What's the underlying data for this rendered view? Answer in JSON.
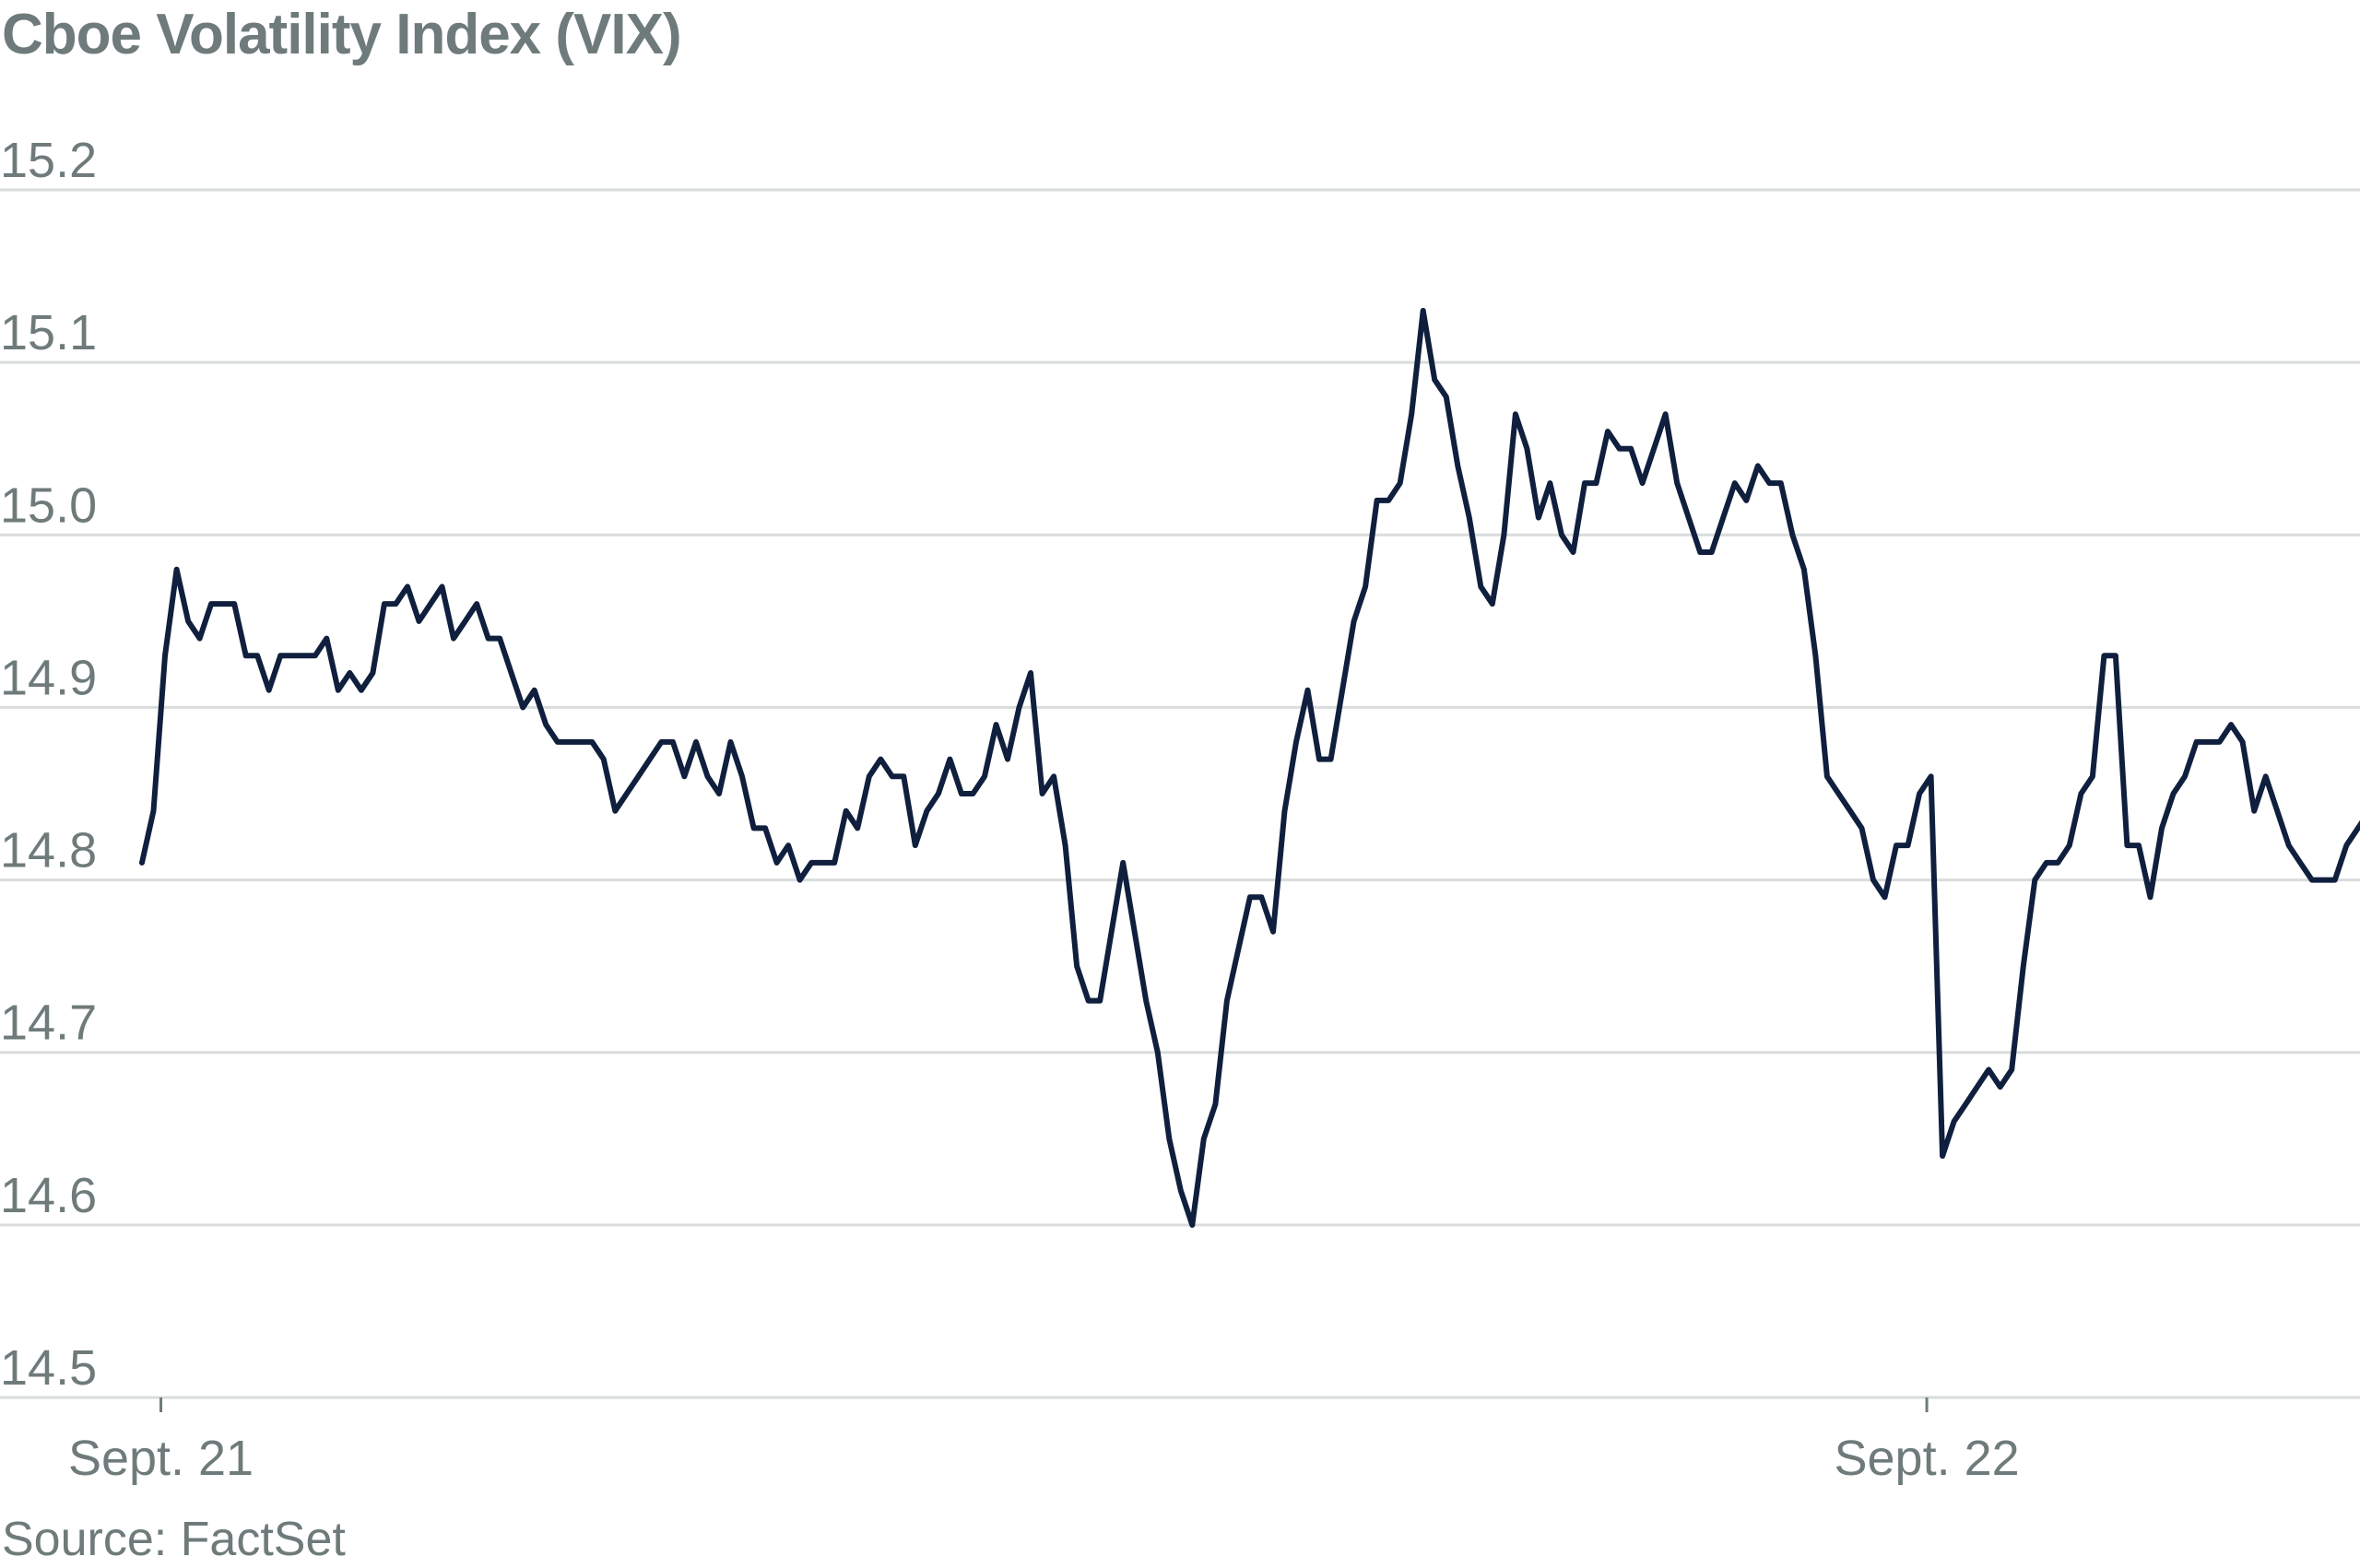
{
  "chart_data": {
    "type": "line",
    "title": "Cboe Volatility Index (VIX)",
    "source": "Source: FactSet",
    "xlabel": "",
    "ylabel": "",
    "ylim": [
      14.5,
      15.2
    ],
    "y_ticks": [
      "15.2",
      "15.1",
      "15.0",
      "14.9",
      "14.8",
      "14.7",
      "14.6",
      "14.5"
    ],
    "x_ticks": [
      {
        "label": "Sept. 21",
        "index": 1
      },
      {
        "label": "Sept. 22",
        "index": 154
      }
    ],
    "grid": true,
    "line_color": "#0f1f3d",
    "series": [
      {
        "values": [
          14.81,
          14.84,
          14.93,
          14.98,
          14.95,
          14.94,
          14.96,
          14.96,
          14.96,
          14.93,
          14.93,
          14.91,
          14.93,
          14.93,
          14.93,
          14.93,
          14.94,
          14.91,
          14.92,
          14.91,
          14.92,
          14.96,
          14.96,
          14.97,
          14.95,
          14.96,
          14.97,
          14.94,
          14.95,
          14.96,
          14.94,
          14.94,
          14.92,
          14.9,
          14.91,
          14.89,
          14.88,
          14.88,
          14.88,
          14.88,
          14.87,
          14.84,
          14.85,
          14.86,
          14.87,
          14.88,
          14.88,
          14.86,
          14.88,
          14.86,
          14.85,
          14.88,
          14.86,
          14.83,
          14.83,
          14.81,
          14.82,
          14.8,
          14.81,
          14.81,
          14.81,
          14.84,
          14.83,
          14.86,
          14.87,
          14.86,
          14.86,
          14.82,
          14.84,
          14.85,
          14.87,
          14.85,
          14.85,
          14.86,
          14.89,
          14.87,
          14.9,
          14.92,
          14.85,
          14.86,
          14.82,
          14.75,
          14.73,
          14.73,
          14.77,
          14.81,
          14.77,
          14.73,
          14.7,
          14.65,
          14.62,
          14.6,
          14.65,
          14.67,
          14.73,
          14.76,
          14.79,
          14.79,
          14.77,
          14.84,
          14.88,
          14.91,
          14.87,
          14.87,
          14.91,
          14.95,
          14.97,
          15.02,
          15.02,
          15.03,
          15.07,
          15.13,
          15.09,
          15.08,
          15.04,
          15.01,
          14.97,
          14.96,
          15.0,
          15.07,
          15.05,
          15.01,
          15.03,
          15.0,
          14.99,
          15.03,
          15.03,
          15.06,
          15.05,
          15.05,
          15.03,
          15.05,
          15.07,
          15.03,
          15.01,
          14.99,
          14.99,
          15.01,
          15.03,
          15.02,
          15.04,
          15.03,
          15.03,
          15.0,
          14.98,
          14.93,
          14.86,
          14.85,
          14.84,
          14.83,
          14.8,
          14.79,
          14.82,
          14.82,
          14.85,
          14.86,
          14.64,
          14.66,
          14.67,
          14.68,
          14.69,
          14.68,
          14.69,
          14.75,
          14.8,
          14.81,
          14.81,
          14.82,
          14.85,
          14.86,
          14.93,
          14.93,
          14.82,
          14.82,
          14.79,
          14.83,
          14.85,
          14.86,
          14.88,
          14.88,
          14.88,
          14.89,
          14.88,
          14.84,
          14.86,
          14.84,
          14.82,
          14.81,
          14.8,
          14.8,
          14.8,
          14.82,
          14.83,
          14.84,
          14.84
        ]
      }
    ]
  }
}
